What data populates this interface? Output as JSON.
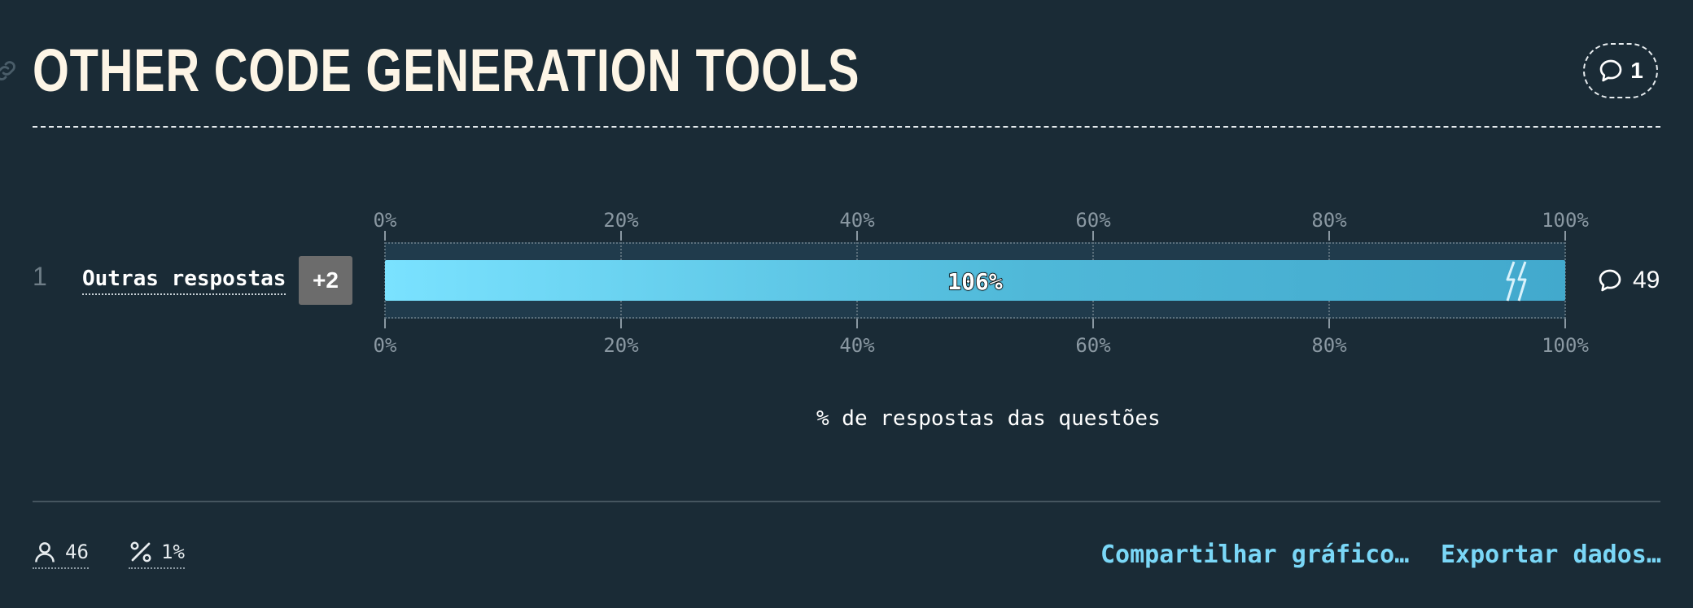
{
  "header": {
    "title": "OTHER CODE GENERATION TOOLS",
    "comment_count": "1"
  },
  "axis": {
    "ticks": [
      "0%",
      "20%",
      "40%",
      "60%",
      "80%",
      "100%"
    ],
    "label": "% de respostas das questões"
  },
  "chart_data": {
    "type": "bar",
    "orientation": "horizontal",
    "categories": [
      "Outras respostas"
    ],
    "values": [
      106
    ],
    "value_labels": [
      "106%"
    ],
    "xlabel": "% de respostas das questões",
    "xlim": [
      0,
      100
    ],
    "x_ticks": [
      "0%",
      "20%",
      "40%",
      "60%",
      "80%",
      "100%"
    ],
    "clipped": true,
    "grid": true,
    "rows": [
      {
        "rank": "1",
        "label": "Outras respostas",
        "extra_badge": "+2",
        "value": 106,
        "value_label": "106%",
        "comments": "49"
      }
    ]
  },
  "footer": {
    "respondents": "46",
    "percent": "1%",
    "share_label": "Compartilhar gráfico…",
    "export_label": "Exportar dados…"
  },
  "colors": {
    "background": "#1a2b36",
    "title": "#fdf5e6",
    "bar_start": "#7ae2ff",
    "bar_end": "#42a9cd",
    "link": "#7ad7f7",
    "badge": "#6c6c6c"
  },
  "icons": {
    "link": "link-icon",
    "comment": "comment-bubble-icon",
    "respondents": "user-icon",
    "percent": "percent-icon",
    "break": "bar-break-icon"
  }
}
